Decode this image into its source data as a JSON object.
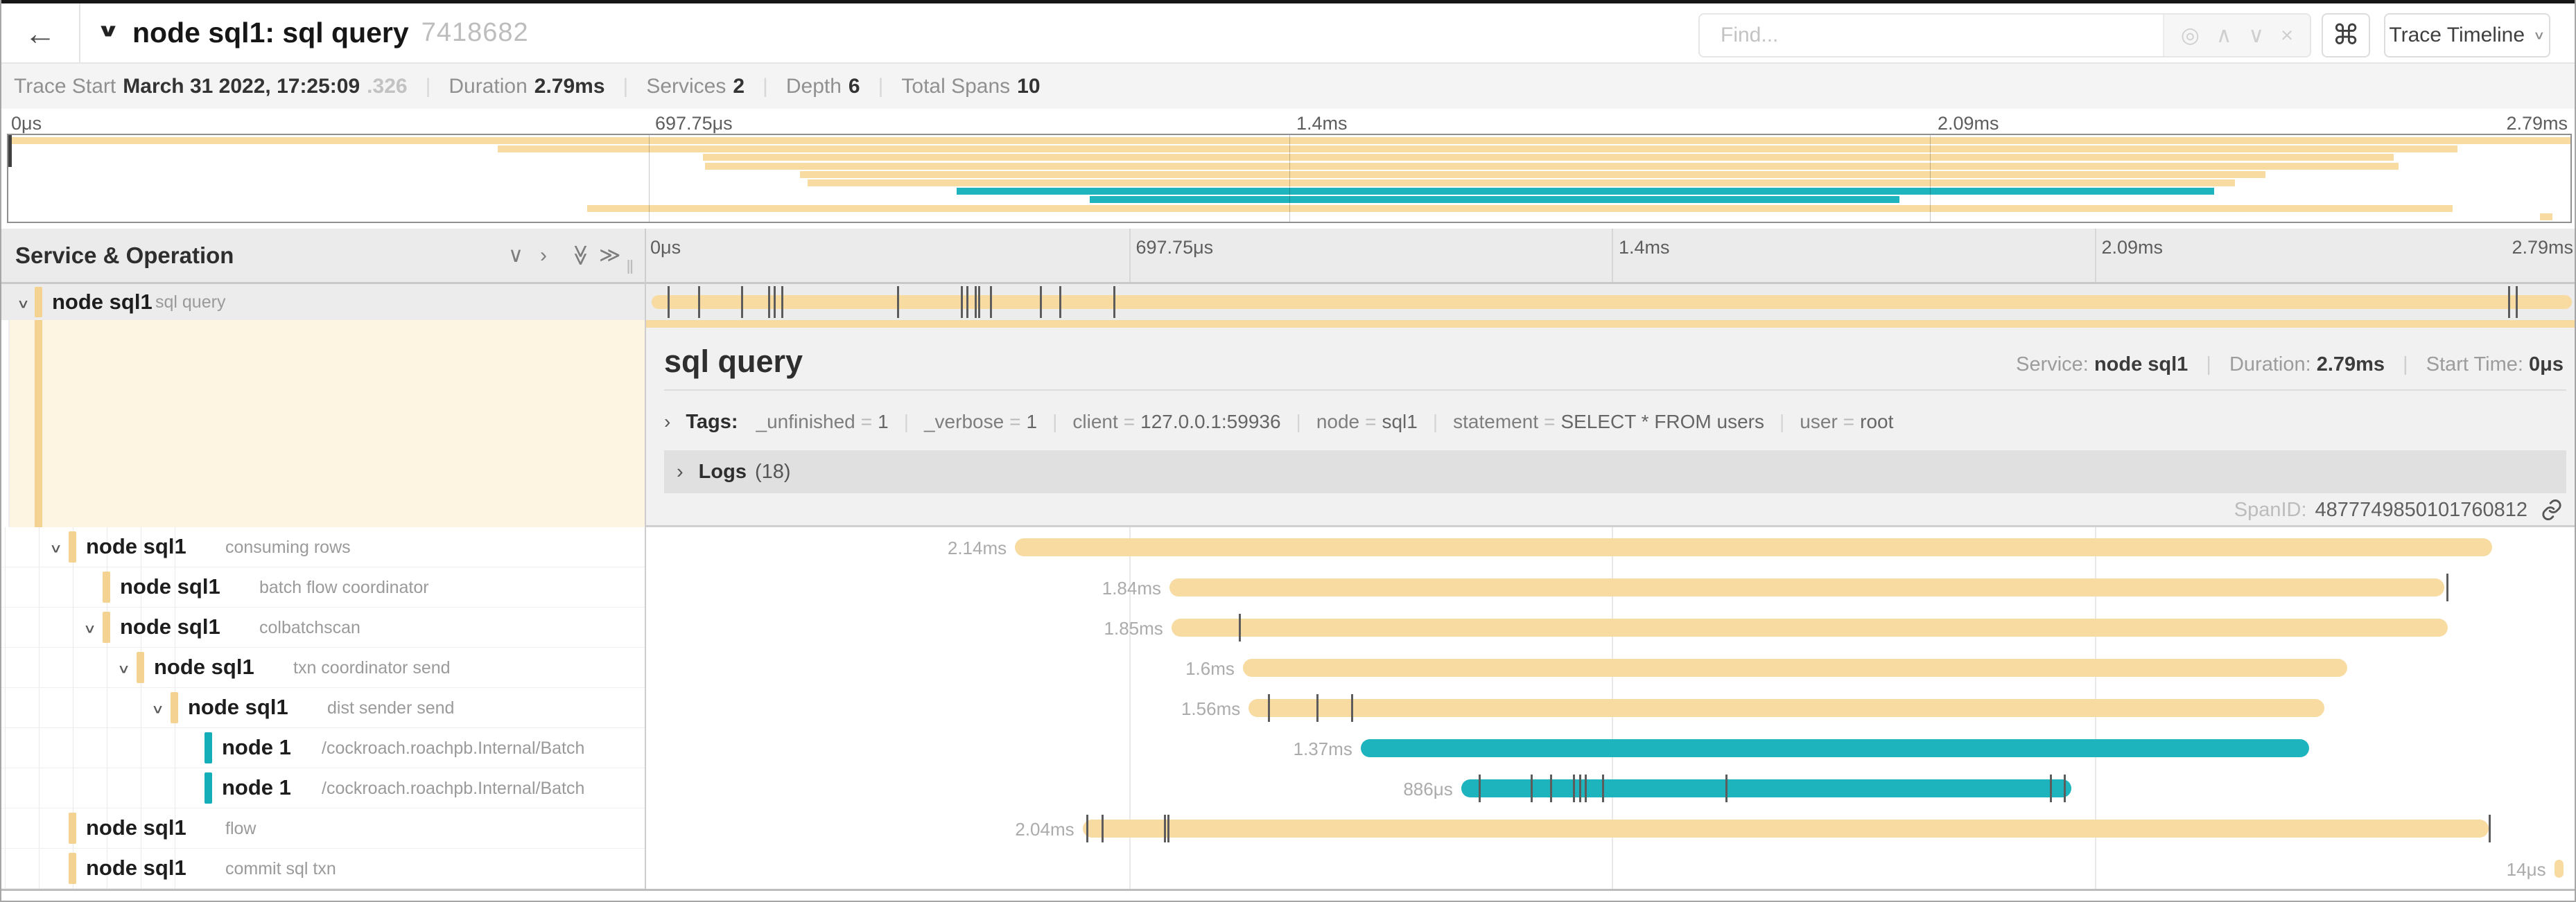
{
  "header": {
    "title": "node sql1: sql query",
    "trace_id": "7418682",
    "back_icon": "←",
    "collapse_chevron": "∨",
    "find_placeholder": "Find...",
    "find_icons": {
      "locate": "◎",
      "prev": "∧",
      "next": "∨",
      "clear": "×"
    },
    "shortcut_button": "⌘",
    "view_button_label": "Trace Timeline",
    "view_button_chevron": "∨"
  },
  "trace_info": {
    "trace_start_label": "Trace Start",
    "trace_start": "March 31 2022, 17:25:09",
    "trace_start_fraction": ".326",
    "duration_label": "Duration",
    "duration": "2.79ms",
    "services_label": "Services",
    "services": "2",
    "depth_label": "Depth",
    "depth": "6",
    "total_spans_label": "Total Spans",
    "total_spans": "10",
    "separator": "|"
  },
  "colors": {
    "tan": "#f8dba1",
    "tan_indicator": "#f4d292",
    "teal": "#1eb4be",
    "teal_indicator": "#14aeb9"
  },
  "minimap": {
    "axis_ticks": [
      "0μs",
      "697.75μs",
      "1.4ms",
      "2.09ms",
      "2.79ms"
    ],
    "rows": [
      {
        "start": 0.0,
        "end": 100.0,
        "color": "tan"
      },
      {
        "start": 19.1,
        "end": 95.6,
        "color": "tan"
      },
      {
        "start": 27.1,
        "end": 93.1,
        "color": "tan"
      },
      {
        "start": 27.2,
        "end": 93.3,
        "color": "tan"
      },
      {
        "start": 30.9,
        "end": 88.1,
        "color": "tan"
      },
      {
        "start": 31.2,
        "end": 86.9,
        "color": "tan"
      },
      {
        "start": 37.0,
        "end": 86.1,
        "color": "teal"
      },
      {
        "start": 42.2,
        "end": 73.8,
        "color": "teal"
      },
      {
        "start": 22.6,
        "end": 95.4,
        "color": "tan"
      },
      {
        "start": 98.8,
        "end": 99.3,
        "color": "tan"
      }
    ]
  },
  "tree": {
    "header": "Service & Operation",
    "header_icons": [
      "∨",
      "›",
      "≫",
      "≫"
    ],
    "resizer": "‖"
  },
  "timeline": {
    "axis_ticks": [
      "0μs",
      "697.75μs",
      "1.4ms",
      "2.09ms",
      "2.79ms"
    ],
    "rows": [
      {
        "service": "node sql1",
        "operation": "sql query",
        "indent": 0,
        "expander": true,
        "color": "tan",
        "selected": true,
        "duration_label": "",
        "start": 0.3,
        "end": 99.7,
        "log_ticks": [
          1.1,
          2.7,
          4.9,
          6.3,
          6.6,
          7.0,
          13.0,
          16.3,
          16.6,
          17.0,
          17.2,
          17.8,
          20.4,
          21.4,
          24.2,
          96.4,
          96.8
        ]
      },
      {
        "service": "node sql1",
        "operation": "consuming rows",
        "indent": 1,
        "expander": true,
        "color": "tan",
        "duration_label": "2.14ms",
        "start": 19.1,
        "end": 95.6,
        "log_ticks": []
      },
      {
        "service": "node sql1",
        "operation": "batch flow coordinator",
        "indent": 2,
        "expander": false,
        "color": "tan",
        "duration_label": "1.84ms",
        "start": 27.1,
        "end": 93.1,
        "log_ticks": [
          93.2
        ]
      },
      {
        "service": "node sql1",
        "operation": "colbatchscan",
        "indent": 2,
        "expander": true,
        "color": "tan",
        "duration_label": "1.85ms",
        "start": 27.2,
        "end": 93.3,
        "log_ticks": [
          30.7
        ]
      },
      {
        "service": "node sql1",
        "operation": "txn coordinator send",
        "indent": 3,
        "expander": true,
        "color": "tan",
        "duration_label": "1.6ms",
        "start": 30.9,
        "end": 88.1,
        "log_ticks": []
      },
      {
        "service": "node sql1",
        "operation": "dist sender send",
        "indent": 4,
        "expander": true,
        "color": "tan",
        "duration_label": "1.56ms",
        "start": 31.2,
        "end": 86.9,
        "log_ticks": [
          32.2,
          34.7,
          36.5
        ]
      },
      {
        "service": "node 1",
        "operation": "/cockroach.roachpb.Internal/Batch",
        "indent": 5,
        "expander": false,
        "color": "teal",
        "duration_label": "1.37ms",
        "start": 37.0,
        "end": 86.1,
        "log_ticks": []
      },
      {
        "service": "node 1",
        "operation": "/cockroach.roachpb.Internal/Batch",
        "indent": 5,
        "expander": false,
        "color": "teal",
        "duration_label": "886μs",
        "start": 42.2,
        "end": 73.8,
        "log_ticks": [
          43.1,
          45.8,
          46.8,
          48.0,
          48.3,
          48.6,
          49.5,
          55.9,
          72.7,
          73.4
        ]
      },
      {
        "service": "node sql1",
        "operation": "flow",
        "indent": 1,
        "expander": false,
        "color": "tan",
        "duration_label": "2.04ms",
        "start": 22.6,
        "end": 95.4,
        "log_ticks": [
          22.8,
          23.6,
          26.8,
          27.0,
          95.4
        ]
      },
      {
        "service": "node sql1",
        "operation": "commit sql txn",
        "indent": 1,
        "expander": false,
        "color": "tan",
        "duration_label": "14μs",
        "start": 98.8,
        "end": 99.3,
        "log_ticks": []
      }
    ]
  },
  "detail": {
    "title": "sql query",
    "service_label": "Service:",
    "service": "node sql1",
    "duration_label": "Duration:",
    "duration": "2.79ms",
    "start_time_label": "Start Time:",
    "start_time": "0μs",
    "meta_separator": "|",
    "tags_chevron": "›",
    "tags_label": "Tags:",
    "tags": [
      {
        "key": "_unfinished",
        "value": "1"
      },
      {
        "key": "_verbose",
        "value": "1"
      },
      {
        "key": "client",
        "value": "127.0.0.1:59936"
      },
      {
        "key": "node",
        "value": "sql1"
      },
      {
        "key": "statement",
        "value": "SELECT * FROM users"
      },
      {
        "key": "user",
        "value": "root"
      }
    ],
    "logs_chevron": "›",
    "logs_label": "Logs",
    "logs_count": "(18)",
    "span_id_label": "SpanID:",
    "span_id": "4877749850101760812"
  }
}
